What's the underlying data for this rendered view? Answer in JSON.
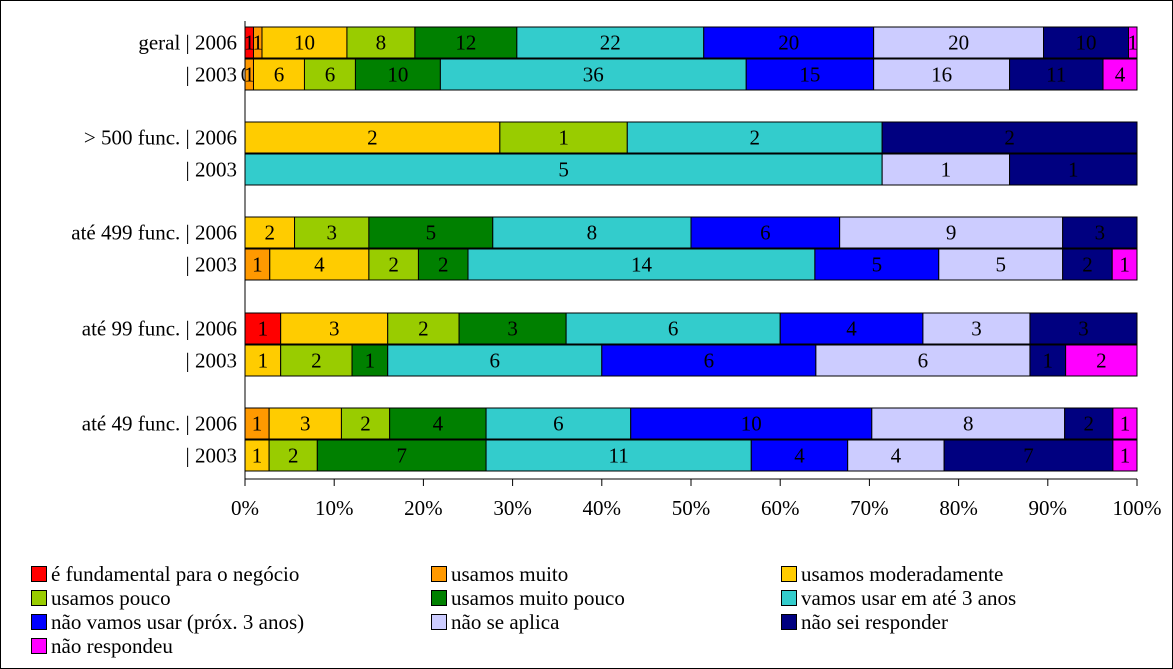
{
  "chart_data": {
    "type": "bar",
    "orientation": "horizontal",
    "stacking": "percent",
    "xlim": [
      0,
      100
    ],
    "xticks": [
      "0%",
      "10%",
      "20%",
      "30%",
      "40%",
      "50%",
      "60%",
      "70%",
      "80%",
      "90%",
      "100%"
    ],
    "groups": [
      {
        "rows": [
          {
            "label": "geral | 2006",
            "values": [
              1,
              1,
              10,
              8,
              12,
              22,
              20,
              20,
              10,
              1
            ]
          },
          {
            "label": "| 2003",
            "values": [
              0,
              1,
              6,
              6,
              10,
              36,
              15,
              16,
              11,
              4
            ]
          }
        ]
      },
      {
        "rows": [
          {
            "label": "> 500 func. | 2006",
            "values": [
              0,
              0,
              2,
              1,
              0,
              2,
              0,
              0,
              2,
              0
            ]
          },
          {
            "label": "| 2003",
            "values": [
              0,
              0,
              0,
              0,
              0,
              5,
              0,
              1,
              1,
              0
            ]
          }
        ]
      },
      {
        "rows": [
          {
            "label": "até 499 func. | 2006",
            "values": [
              0,
              0,
              2,
              3,
              5,
              8,
              6,
              9,
              3,
              0
            ]
          },
          {
            "label": "| 2003",
            "values": [
              0,
              1,
              4,
              2,
              2,
              14,
              5,
              5,
              2,
              1
            ]
          }
        ]
      },
      {
        "rows": [
          {
            "label": "até 99 func. | 2006",
            "values": [
              1,
              0,
              3,
              2,
              3,
              6,
              4,
              3,
              3,
              0
            ]
          },
          {
            "label": "| 2003",
            "values": [
              0,
              0,
              1,
              2,
              1,
              6,
              6,
              6,
              1,
              2
            ]
          }
        ]
      },
      {
        "rows": [
          {
            "label": "até 49 func. | 2006",
            "values": [
              0,
              1,
              3,
              2,
              4,
              6,
              10,
              8,
              2,
              1
            ]
          },
          {
            "label": "| 2003",
            "values": [
              0,
              0,
              1,
              2,
              7,
              11,
              4,
              4,
              7,
              1
            ]
          }
        ]
      }
    ],
    "series": [
      {
        "name": "é fundamental para o negócio",
        "color": "#ff0000"
      },
      {
        "name": "usamos muito",
        "color": "#ff9900"
      },
      {
        "name": "usamos moderadamente",
        "color": "#ffcc00"
      },
      {
        "name": "usamos pouco",
        "color": "#99cc00"
      },
      {
        "name": "usamos muito pouco",
        "color": "#008000"
      },
      {
        "name": "vamos usar em até 3 anos",
        "color": "#33cccc"
      },
      {
        "name": "não vamos usar (próx. 3 anos)",
        "color": "#0000ff"
      },
      {
        "name": "não se aplica",
        "color": "#ccccff"
      },
      {
        "name": "não sei responder",
        "color": "#000080"
      },
      {
        "name": "não respondeu",
        "color": "#ff00ff"
      }
    ],
    "legend_position": "bottom",
    "grid": false
  }
}
